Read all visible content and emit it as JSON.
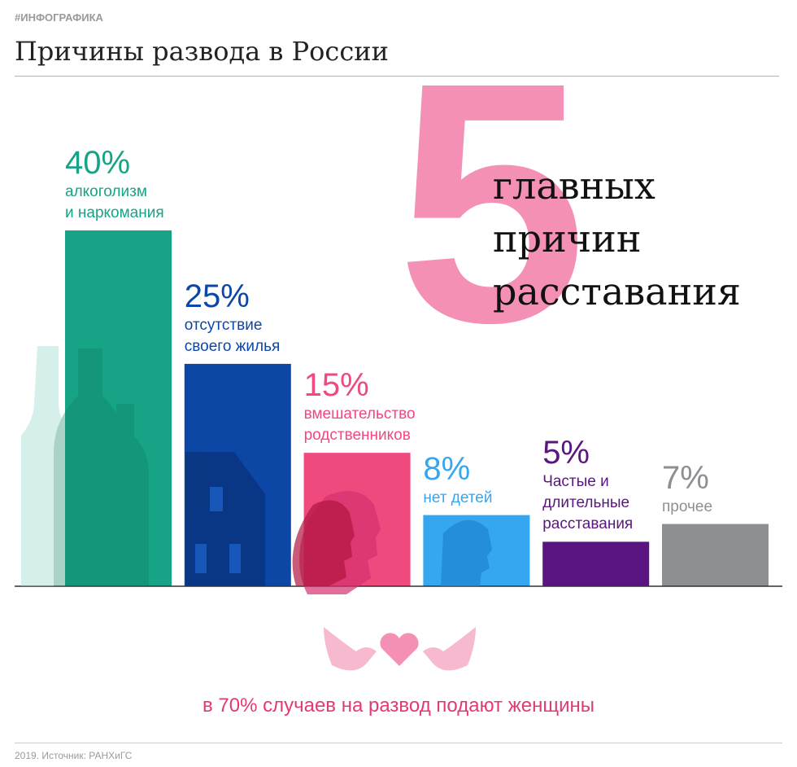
{
  "header": {
    "tag": "#ИНФОГРАФИКА"
  },
  "chart_data": {
    "type": "bar",
    "title": "Причины развода в России",
    "categories": [
      "алкоголизм\nи наркомания",
      "отсутствие\nсвоего жилья",
      "вмешательство\nродственников",
      "нет детей",
      "Частые и\nдлительные\nрасставания",
      "прочее"
    ],
    "values": [
      40,
      25,
      15,
      8,
      5,
      7
    ],
    "value_labels": [
      "40%",
      "25%",
      "15%",
      "8%",
      "5%",
      "7%"
    ],
    "colors": [
      "#17a385",
      "#0c47a6",
      "#f0497d",
      "#35a6f0",
      "#5a1580",
      "#8e8f93"
    ]
  },
  "headline": {
    "number": "5",
    "text": "главных\nпричин\nрасставания"
  },
  "footer": {
    "note": "в 70% случаев на развод подают женщины",
    "source": "2019. Источник: РАНХиГС"
  }
}
